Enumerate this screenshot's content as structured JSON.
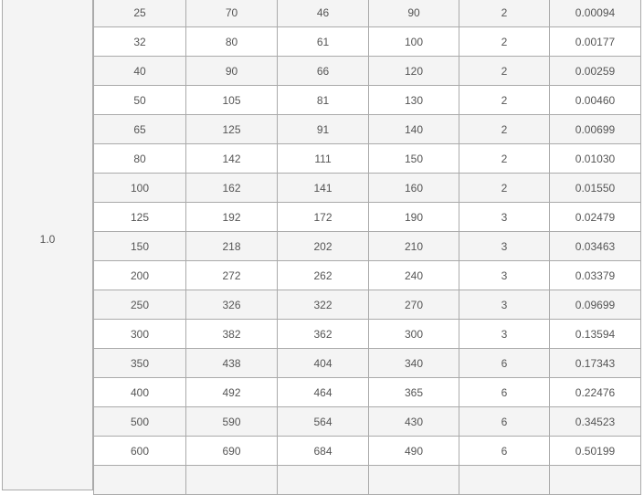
{
  "group_label": "1.0",
  "rows": [
    [
      "25",
      "70",
      "46",
      "90",
      "2",
      "0.00094"
    ],
    [
      "32",
      "80",
      "61",
      "100",
      "2",
      "0.00177"
    ],
    [
      "40",
      "90",
      "66",
      "120",
      "2",
      "0.00259"
    ],
    [
      "50",
      "105",
      "81",
      "130",
      "2",
      "0.00460"
    ],
    [
      "65",
      "125",
      "91",
      "140",
      "2",
      "0.00699"
    ],
    [
      "80",
      "142",
      "111",
      "150",
      "2",
      "0.01030"
    ],
    [
      "100",
      "162",
      "141",
      "160",
      "2",
      "0.01550"
    ],
    [
      "125",
      "192",
      "172",
      "190",
      "3",
      "0.02479"
    ],
    [
      "150",
      "218",
      "202",
      "210",
      "3",
      "0.03463"
    ],
    [
      "200",
      "272",
      "262",
      "240",
      "3",
      "0.03379"
    ],
    [
      "250",
      "326",
      "322",
      "270",
      "3",
      "0.09699"
    ],
    [
      "300",
      "382",
      "362",
      "300",
      "3",
      "0.13594"
    ],
    [
      "350",
      "438",
      "404",
      "340",
      "6",
      "0.17343"
    ],
    [
      "400",
      "492",
      "464",
      "365",
      "6",
      "0.22476"
    ],
    [
      "500",
      "590",
      "564",
      "430",
      "6",
      "0.34523"
    ],
    [
      "600",
      "690",
      "684",
      "490",
      "6",
      "0.50199"
    ],
    [
      "",
      "",
      "",
      "",
      "",
      ""
    ]
  ]
}
